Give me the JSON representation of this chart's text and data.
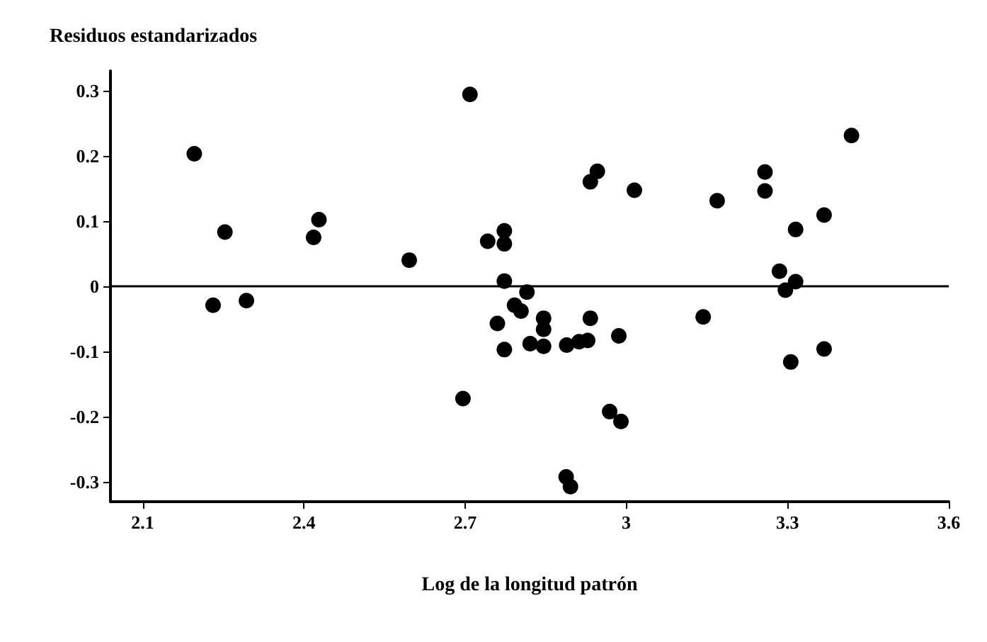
{
  "chart_data": {
    "type": "scatter",
    "ylabel": "Residuos estandarizados",
    "xlabel": "Log de la longitud patrón",
    "xlim": [
      2.04,
      3.6
    ],
    "xticks": [
      2.1,
      2.4,
      2.7,
      3,
      3.3,
      3.6
    ],
    "ylim": [
      -0.33,
      0.33
    ],
    "yticks": [
      -0.3,
      -0.2,
      -0.1,
      0,
      0.1,
      0.2,
      0.3
    ],
    "grid": false,
    "marker": "circle",
    "x": [
      2.196,
      2.231,
      2.253,
      2.293,
      2.418,
      2.428,
      2.596,
      2.709,
      2.696,
      2.742,
      2.773,
      2.773,
      2.773,
      2.76,
      2.773,
      2.815,
      2.792,
      2.804,
      2.846,
      2.846,
      2.821,
      2.846,
      2.889,
      2.912,
      2.928,
      2.933,
      2.986,
      2.933,
      2.946,
      3.015,
      2.969,
      2.99,
      2.888,
      2.896,
      3.169,
      3.143,
      3.258,
      3.258,
      3.315,
      3.368,
      3.419,
      3.285,
      3.296,
      3.315,
      3.306,
      3.368
    ],
    "series": [
      {
        "color": "#000000",
        "values": [
          0.203,
          -0.029,
          0.083,
          -0.022,
          0.075,
          0.102,
          0.04,
          0.294,
          -0.172,
          0.069,
          0.085,
          0.065,
          0.008,
          -0.057,
          -0.097,
          -0.009,
          -0.029,
          -0.038,
          -0.049,
          -0.066,
          -0.088,
          -0.092,
          -0.09,
          -0.085,
          -0.083,
          -0.049,
          -0.076,
          0.16,
          0.176,
          0.147,
          -0.192,
          -0.207,
          -0.292,
          -0.307,
          0.131,
          -0.047,
          0.175,
          0.146,
          0.087,
          0.109,
          0.231,
          0.023,
          -0.006,
          0.007,
          -0.116,
          -0.096
        ]
      }
    ],
    "ref_lines": [
      {
        "axis": "y",
        "value": 0,
        "color": "#000000",
        "line_style": "solid"
      }
    ]
  }
}
